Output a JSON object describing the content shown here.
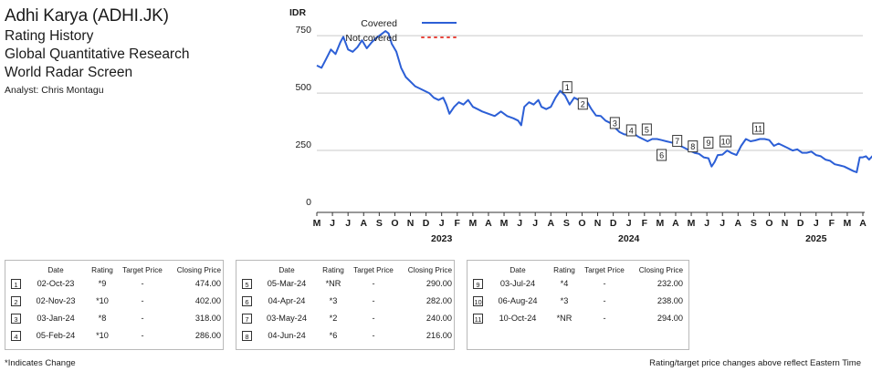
{
  "header": {
    "title": "Adhi Karya (ADHI.JK)",
    "lines": [
      "Rating History",
      "Global Quantitative Research",
      "World Radar Screen"
    ],
    "analyst": "Analyst: Chris Montagu"
  },
  "chart_data": {
    "type": "line",
    "ylabel": "IDR",
    "ylim": [
      0,
      850
    ],
    "yticks": [
      0,
      250,
      500,
      750
    ],
    "grid": true,
    "legend": {
      "placement": "top-left",
      "entries": [
        {
          "label": "Covered",
          "style": "solid",
          "color": "#2c5fd6"
        },
        {
          "label": "Not covered",
          "style": "dotted",
          "color": "#e8453c"
        }
      ]
    },
    "x_months": [
      "M",
      "J",
      "J",
      "A",
      "S",
      "O",
      "N",
      "D",
      "J",
      "F",
      "M",
      "A",
      "M",
      "J",
      "J",
      "A",
      "S",
      "O",
      "N",
      "D",
      "J",
      "F",
      "M",
      "A",
      "M",
      "J",
      "J",
      "A",
      "S",
      "O",
      "N",
      "D",
      "J",
      "F",
      "M",
      "A"
    ],
    "x_years": [
      {
        "label": "2023",
        "month_index": 8
      },
      {
        "label": "2024",
        "month_index": 20
      },
      {
        "label": "2025",
        "month_index": 32
      }
    ],
    "series": [
      {
        "color": "#2c5fd6",
        "points": [
          [
            0.0,
            620
          ],
          [
            0.3,
            610
          ],
          [
            0.6,
            650
          ],
          [
            0.9,
            690
          ],
          [
            1.2,
            670
          ],
          [
            1.5,
            720
          ],
          [
            1.7,
            745
          ],
          [
            2.0,
            690
          ],
          [
            2.3,
            680
          ],
          [
            2.6,
            700
          ],
          [
            2.9,
            730
          ],
          [
            3.2,
            695
          ],
          [
            3.5,
            720
          ],
          [
            3.8,
            740
          ],
          [
            4.1,
            755
          ],
          [
            4.4,
            770
          ],
          [
            4.6,
            760
          ],
          [
            4.8,
            715
          ],
          [
            5.1,
            680
          ],
          [
            5.4,
            610
          ],
          [
            5.7,
            570
          ],
          [
            6.0,
            550
          ],
          [
            6.3,
            530
          ],
          [
            6.6,
            520
          ],
          [
            6.9,
            510
          ],
          [
            7.2,
            500
          ],
          [
            7.5,
            480
          ],
          [
            7.8,
            470
          ],
          [
            8.1,
            480
          ],
          [
            8.3,
            450
          ],
          [
            8.5,
            410
          ],
          [
            8.8,
            440
          ],
          [
            9.1,
            460
          ],
          [
            9.4,
            450
          ],
          [
            9.7,
            470
          ],
          [
            10.0,
            440
          ],
          [
            10.3,
            430
          ],
          [
            10.6,
            420
          ],
          [
            11.0,
            410
          ],
          [
            11.4,
            400
          ],
          [
            11.8,
            420
          ],
          [
            12.2,
            400
          ],
          [
            12.6,
            390
          ],
          [
            12.9,
            380
          ],
          [
            13.1,
            360
          ],
          [
            13.3,
            440
          ],
          [
            13.6,
            460
          ],
          [
            13.9,
            450
          ],
          [
            14.2,
            470
          ],
          [
            14.4,
            440
          ],
          [
            14.7,
            430
          ],
          [
            15.0,
            440
          ],
          [
            15.3,
            480
          ],
          [
            15.6,
            510
          ],
          [
            15.9,
            490
          ],
          [
            16.2,
            450
          ],
          [
            16.5,
            480
          ],
          [
            16.8,
            470
          ],
          [
            17.0,
            475
          ],
          [
            17.3,
            465
          ],
          [
            17.6,
            430
          ],
          [
            17.9,
            402
          ],
          [
            18.2,
            400
          ],
          [
            18.5,
            380
          ],
          [
            18.8,
            370
          ],
          [
            19.1,
            350
          ],
          [
            19.4,
            330
          ],
          [
            19.7,
            320
          ],
          [
            20.0,
            318
          ],
          [
            20.3,
            325
          ],
          [
            20.6,
            310
          ],
          [
            20.9,
            300
          ],
          [
            21.2,
            290
          ],
          [
            21.5,
            300
          ],
          [
            21.8,
            300
          ],
          [
            22.1,
            295
          ],
          [
            22.4,
            290
          ],
          [
            22.7,
            285
          ],
          [
            23.0,
            282
          ],
          [
            23.3,
            270
          ],
          [
            23.6,
            260
          ],
          [
            23.9,
            250
          ],
          [
            24.2,
            240
          ],
          [
            24.5,
            235
          ],
          [
            24.8,
            220
          ],
          [
            25.1,
            216
          ],
          [
            25.3,
            180
          ],
          [
            25.5,
            200
          ],
          [
            25.7,
            230
          ],
          [
            26.0,
            232
          ],
          [
            26.3,
            250
          ],
          [
            26.6,
            238
          ],
          [
            26.9,
            230
          ],
          [
            27.2,
            270
          ],
          [
            27.5,
            300
          ],
          [
            27.8,
            290
          ],
          [
            28.1,
            294
          ],
          [
            28.4,
            300
          ],
          [
            28.7,
            300
          ],
          [
            29.0,
            295
          ],
          [
            29.3,
            270
          ],
          [
            29.6,
            280
          ],
          [
            29.9,
            270
          ],
          [
            30.2,
            260
          ],
          [
            30.5,
            250
          ],
          [
            30.8,
            255
          ],
          [
            31.1,
            240
          ],
          [
            31.4,
            240
          ],
          [
            31.7,
            245
          ],
          [
            32.0,
            230
          ],
          [
            32.3,
            225
          ],
          [
            32.6,
            210
          ],
          [
            32.9,
            205
          ],
          [
            33.2,
            190
          ],
          [
            33.5,
            185
          ],
          [
            33.8,
            180
          ],
          [
            34.1,
            170
          ],
          [
            34.4,
            160
          ],
          [
            34.6,
            155
          ],
          [
            34.8,
            220
          ],
          [
            35.0,
            220
          ],
          [
            35.2,
            225
          ],
          [
            35.4,
            210
          ],
          [
            35.6,
            225
          ],
          [
            35.8,
            240
          ],
          [
            36.0,
            265
          ]
        ]
      }
    ],
    "markers": [
      {
        "num": "1",
        "x": 16.05,
        "y": 474,
        "pos": "above"
      },
      {
        "num": "2",
        "x": 17.05,
        "y": 402,
        "pos": "above"
      },
      {
        "num": "3",
        "x": 19.1,
        "y": 318,
        "pos": "above"
      },
      {
        "num": "4",
        "x": 20.15,
        "y": 286,
        "pos": "above"
      },
      {
        "num": "5",
        "x": 21.15,
        "y": 290,
        "pos": "above"
      },
      {
        "num": "6",
        "x": 22.1,
        "y": 282,
        "pos": "below"
      },
      {
        "num": "7",
        "x": 23.1,
        "y": 240,
        "pos": "above"
      },
      {
        "num": "8",
        "x": 24.1,
        "y": 216,
        "pos": "above"
      },
      {
        "num": "9",
        "x": 25.1,
        "y": 232,
        "pos": "above"
      },
      {
        "num": "10",
        "x": 26.2,
        "y": 238,
        "pos": "above"
      },
      {
        "num": "11",
        "x": 28.3,
        "y": 294,
        "pos": "above"
      }
    ]
  },
  "table": {
    "headers": {
      "date": "Date",
      "rating": "Rating",
      "target_price": "Target Price",
      "closing_price": "Closing Price"
    },
    "panels": [
      [
        {
          "num": "1",
          "date": "02-Oct-23",
          "rating": "*9",
          "tp": "-",
          "cp": "474.00"
        },
        {
          "num": "2",
          "date": "02-Nov-23",
          "rating": "*10",
          "tp": "-",
          "cp": "402.00"
        },
        {
          "num": "3",
          "date": "03-Jan-24",
          "rating": "*8",
          "tp": "-",
          "cp": "318.00"
        },
        {
          "num": "4",
          "date": "05-Feb-24",
          "rating": "*10",
          "tp": "-",
          "cp": "286.00"
        }
      ],
      [
        {
          "num": "5",
          "date": "05-Mar-24",
          "rating": "*NR",
          "tp": "-",
          "cp": "290.00"
        },
        {
          "num": "6",
          "date": "04-Apr-24",
          "rating": "*3",
          "tp": "-",
          "cp": "282.00"
        },
        {
          "num": "7",
          "date": "03-May-24",
          "rating": "*2",
          "tp": "-",
          "cp": "240.00"
        },
        {
          "num": "8",
          "date": "04-Jun-24",
          "rating": "*6",
          "tp": "-",
          "cp": "216.00"
        }
      ],
      [
        {
          "num": "9",
          "date": "03-Jul-24",
          "rating": "*4",
          "tp": "-",
          "cp": "232.00"
        },
        {
          "num": "10",
          "date": "06-Aug-24",
          "rating": "*3",
          "tp": "-",
          "cp": "238.00"
        },
        {
          "num": "11",
          "date": "10-Oct-24",
          "rating": "*NR",
          "tp": "-",
          "cp": "294.00"
        }
      ]
    ]
  },
  "footer": {
    "left": "*Indicates Change",
    "right": "Rating/target price changes above reflect Eastern Time"
  }
}
